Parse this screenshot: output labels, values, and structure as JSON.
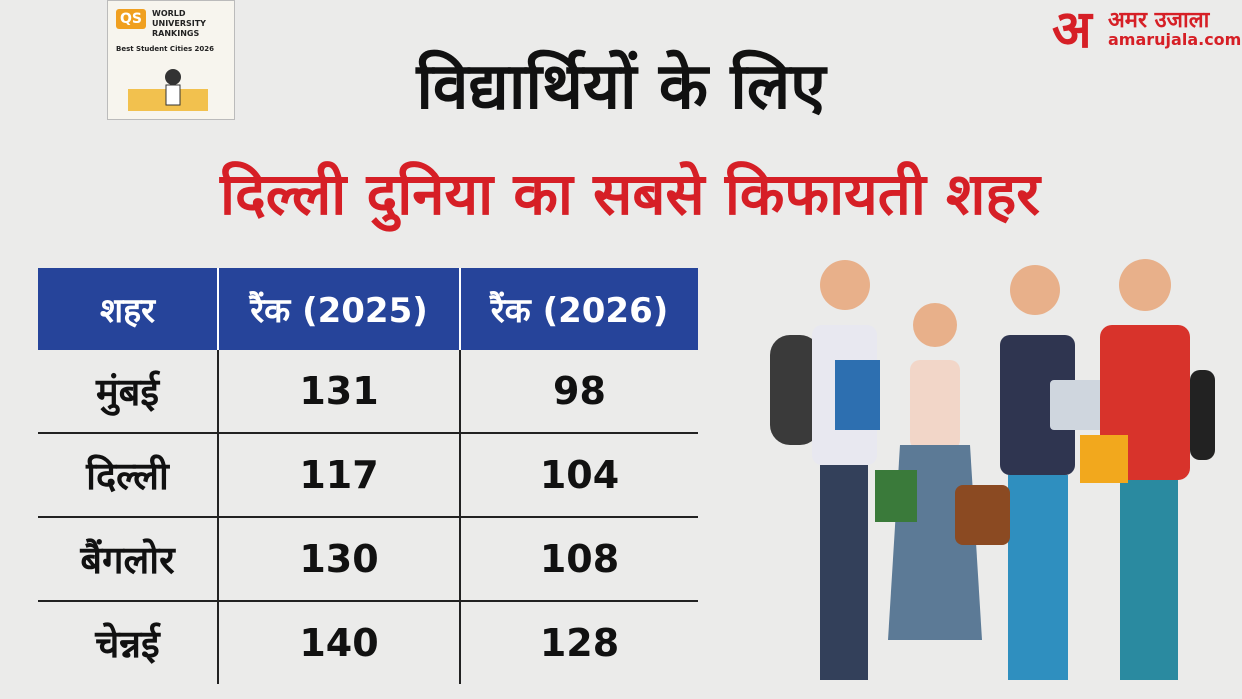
{
  "logo": {
    "mark": "QS",
    "lines": [
      "WORLD",
      "UNIVERSITY",
      "RANKINGS"
    ],
    "subtitle": "Best Student Cities 2026"
  },
  "brand": {
    "mark": "अ",
    "name": "अमर उजाला",
    "site": "amarujala.com"
  },
  "header": {
    "title": "विद्यार्थियों के लिए",
    "subtitle": "दिल्ली दुनिया का सबसे किफायती शहर"
  },
  "table": {
    "header": [
      "शहर",
      "रैंक (2025)",
      "रैंक (2026)"
    ],
    "rows": [
      [
        "मुंबई",
        "131",
        "98"
      ],
      [
        "दिल्ली",
        "117",
        "104"
      ],
      [
        "बैंगलोर",
        "130",
        "108"
      ],
      [
        "चेन्नई",
        "140",
        "128"
      ]
    ]
  }
}
